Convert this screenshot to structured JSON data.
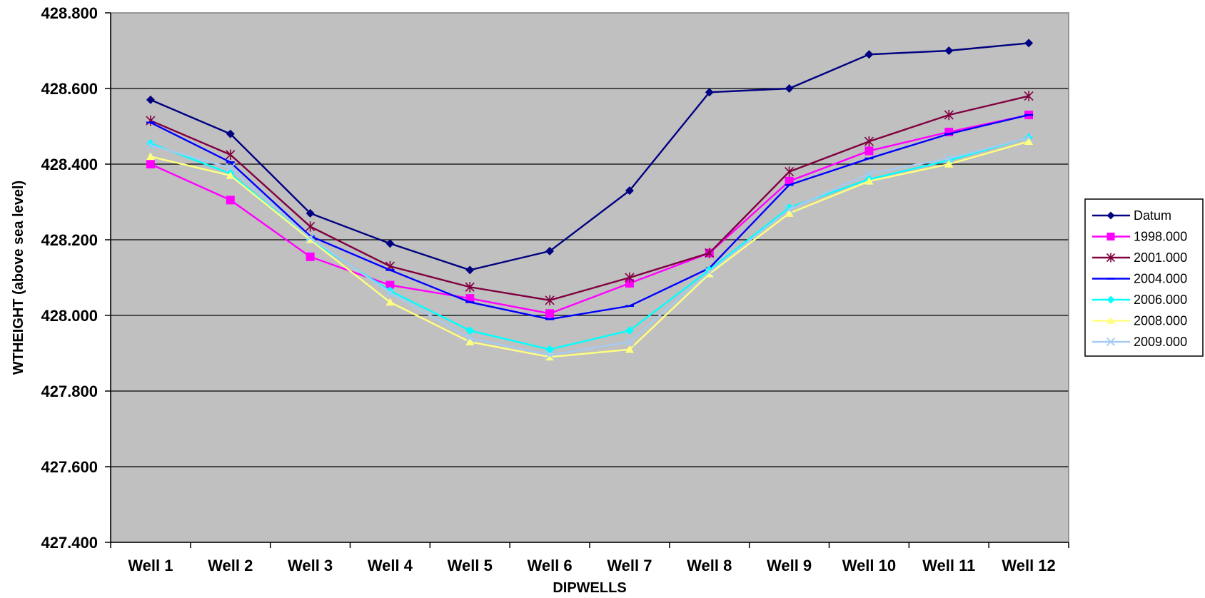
{
  "chart_data": {
    "type": "line",
    "title": "",
    "xlabel": "DIPWELLS",
    "ylabel": "WTHEIGHT (above sea level)",
    "categories": [
      "Well 1",
      "Well 2",
      "Well 3",
      "Well 4",
      "Well 5",
      "Well 6",
      "Well 7",
      "Well 8",
      "Well 9",
      "Well 10",
      "Well 11",
      "Well 12"
    ],
    "ylim": [
      427.4,
      428.8
    ],
    "yticks": [
      "427.400",
      "427.600",
      "427.800",
      "428.000",
      "428.200",
      "428.400",
      "428.600",
      "428.800"
    ],
    "ytick_values": [
      427.4,
      427.6,
      427.8,
      428.0,
      428.2,
      428.4,
      428.6,
      428.8
    ],
    "grid": true,
    "legend_position": "right",
    "plot_background": "#c0c0c0",
    "series": [
      {
        "name": "Datum",
        "color": "#000080",
        "marker": "diamond",
        "values": [
          428.57,
          428.48,
          428.27,
          428.19,
          428.12,
          428.17,
          428.33,
          428.59,
          428.6,
          428.69,
          428.7,
          428.72
        ]
      },
      {
        "name": "1998.000",
        "color": "#ff00ff",
        "marker": "square",
        "values": [
          428.4,
          428.305,
          428.155,
          428.08,
          428.045,
          428.005,
          428.085,
          428.165,
          428.355,
          428.435,
          428.485,
          428.53
        ]
      },
      {
        "name": "2001.000",
        "color": "#800040",
        "marker": "star",
        "values": [
          428.515,
          428.425,
          428.235,
          428.13,
          428.075,
          428.04,
          428.1,
          428.165,
          428.38,
          428.46,
          428.53,
          428.58
        ]
      },
      {
        "name": "2004.000",
        "color": "#0000ff",
        "marker": "dash",
        "values": [
          428.51,
          428.405,
          428.21,
          428.12,
          428.035,
          427.99,
          428.025,
          428.125,
          428.345,
          428.415,
          428.48,
          428.53
        ]
      },
      {
        "name": "2006.000",
        "color": "#00ffff",
        "marker": "diamond",
        "values": [
          428.455,
          428.375,
          428.2,
          428.065,
          427.96,
          427.91,
          427.96,
          428.12,
          428.285,
          428.36,
          428.41,
          428.47
        ]
      },
      {
        "name": "2008.000",
        "color": "#ffff80",
        "marker": "triangle",
        "values": [
          428.42,
          428.37,
          428.2,
          428.035,
          427.93,
          427.89,
          427.91,
          428.11,
          428.27,
          428.355,
          428.4,
          428.46
        ]
      },
      {
        "name": "2009.000",
        "color": "#a6caf0",
        "marker": "x",
        "values": [
          428.45,
          428.39,
          428.205,
          428.06,
          427.94,
          427.895,
          427.93,
          428.115,
          428.28,
          428.375,
          428.415,
          428.47
        ]
      }
    ]
  }
}
